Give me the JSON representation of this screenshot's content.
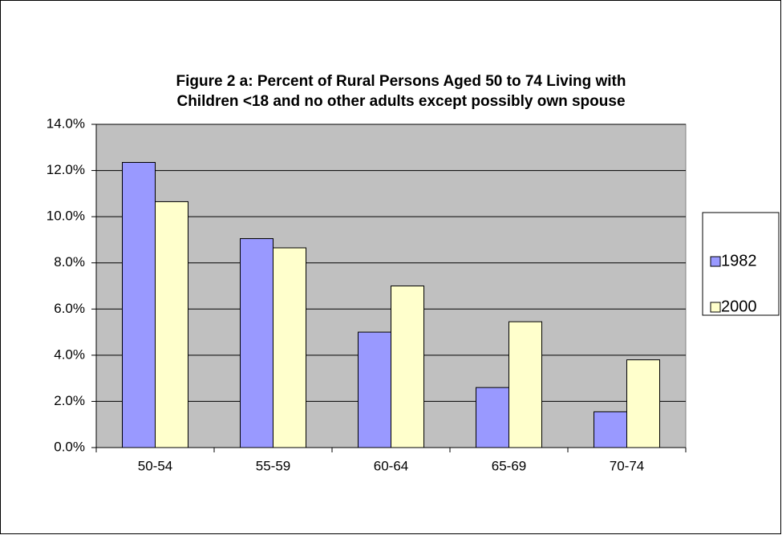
{
  "chart_data": {
    "type": "bar",
    "title": "Figure 2 a: Percent of Rural Persons Aged 50 to 74 Living with\nChildren <18 and no other adults except possibly own spouse",
    "categories": [
      "50-54",
      "55-59",
      "60-64",
      "65-69",
      "70-74"
    ],
    "series": [
      {
        "name": "1982",
        "color": "#9999ff",
        "values": [
          12.35,
          9.05,
          5.0,
          2.6,
          1.55
        ]
      },
      {
        "name": "2000",
        "color": "#ffffcc",
        "values": [
          10.65,
          8.65,
          7.0,
          5.45,
          3.8
        ]
      }
    ],
    "ylim": [
      0,
      14
    ],
    "yticks": [
      {
        "value": 0,
        "label": "0.0%"
      },
      {
        "value": 2,
        "label": "2.0%"
      },
      {
        "value": 4,
        "label": "4.0%"
      },
      {
        "value": 6,
        "label": "6.0%"
      },
      {
        "value": 8,
        "label": "8.0%"
      },
      {
        "value": 10,
        "label": "10.0%"
      },
      {
        "value": 12,
        "label": "12.0%"
      },
      {
        "value": 14,
        "label": "14.0%"
      }
    ],
    "grid": true,
    "legend": "right",
    "plot_background": "#c0c0c0"
  }
}
